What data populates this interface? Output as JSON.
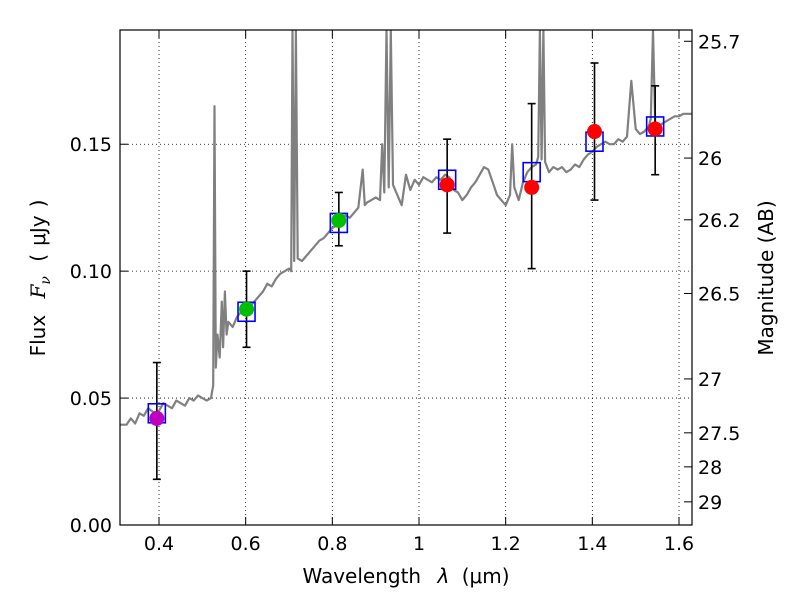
{
  "chart_data": {
    "type": "scatter",
    "xlabel": "Wavelength",
    "xlabel_symbol": "λ",
    "xlabel_unit": "μm",
    "ylabel": "Flux",
    "ylabel_symbol_main": "F",
    "ylabel_symbol_sub": "ν",
    "ylabel_unit": "μJy",
    "y2label": "Magnitude (AB)",
    "xlim": [
      0.31,
      1.63
    ],
    "ylim": [
      0.0,
      0.195
    ],
    "grid": true,
    "x_ticks": [
      {
        "value": 0.4,
        "label": "0.4"
      },
      {
        "value": 0.6,
        "label": "0.6"
      },
      {
        "value": 0.8,
        "label": "0.8"
      },
      {
        "value": 1.0,
        "label": "1"
      },
      {
        "value": 1.2,
        "label": "1.2"
      },
      {
        "value": 1.4,
        "label": "1.4"
      },
      {
        "value": 1.6,
        "label": "1.6"
      }
    ],
    "y_ticks": [
      {
        "value": 0.0,
        "label": "0.00"
      },
      {
        "value": 0.05,
        "label": "0.05"
      },
      {
        "value": 0.1,
        "label": "0.10"
      },
      {
        "value": 0.15,
        "label": "0.15"
      }
    ],
    "y2_ticks": [
      {
        "mag": 25.7,
        "label": "25.7"
      },
      {
        "mag": 26.0,
        "label": "26"
      },
      {
        "mag": 26.2,
        "label": "26.2"
      },
      {
        "mag": 26.5,
        "label": "26.5"
      },
      {
        "mag": 27.0,
        "label": "27"
      },
      {
        "mag": 27.5,
        "label": "27.5"
      },
      {
        "mag": 28.0,
        "label": "28"
      },
      {
        "mag": 29.0,
        "label": "29"
      }
    ],
    "observed": [
      {
        "x": 0.395,
        "y": 0.042,
        "err_lo": 0.018,
        "err_hi": 0.064,
        "color": "#bf00bf"
      },
      {
        "x": 0.602,
        "y": 0.085,
        "err_lo": 0.07,
        "err_hi": 0.1,
        "color": "#00bf00"
      },
      {
        "x": 0.815,
        "y": 0.12,
        "err_lo": 0.11,
        "err_hi": 0.131,
        "color": "#00bf00"
      },
      {
        "x": 1.065,
        "y": 0.134,
        "err_lo": 0.115,
        "err_hi": 0.152,
        "color": "#ff0000"
      },
      {
        "x": 1.26,
        "y": 0.133,
        "err_lo": 0.101,
        "err_hi": 0.166,
        "color": "#ff0000"
      },
      {
        "x": 1.405,
        "y": 0.155,
        "err_lo": 0.128,
        "err_hi": 0.182,
        "color": "#ff0000"
      },
      {
        "x": 1.545,
        "y": 0.156,
        "err_lo": 0.138,
        "err_hi": 0.173,
        "color": "#ff0000"
      }
    ],
    "model_photometry": [
      {
        "x": 0.395,
        "y": 0.044
      },
      {
        "x": 0.602,
        "y": 0.084
      },
      {
        "x": 0.815,
        "y": 0.119
      },
      {
        "x": 1.065,
        "y": 0.136
      },
      {
        "x": 1.26,
        "y": 0.139
      },
      {
        "x": 1.405,
        "y": 0.151
      },
      {
        "x": 1.545,
        "y": 0.157
      }
    ],
    "model_sed": {
      "color": "#808080",
      "points": [
        [
          0.31,
          0.0395
        ],
        [
          0.325,
          0.0395
        ],
        [
          0.335,
          0.042
        ],
        [
          0.345,
          0.04
        ],
        [
          0.355,
          0.044
        ],
        [
          0.365,
          0.043
        ],
        [
          0.375,
          0.046
        ],
        [
          0.39,
          0.044
        ],
        [
          0.4,
          0.045
        ],
        [
          0.41,
          0.048
        ],
        [
          0.42,
          0.047
        ],
        [
          0.43,
          0.046
        ],
        [
          0.44,
          0.049
        ],
        [
          0.45,
          0.048
        ],
        [
          0.46,
          0.047
        ],
        [
          0.47,
          0.05
        ],
        [
          0.48,
          0.049
        ],
        [
          0.49,
          0.051
        ],
        [
          0.5,
          0.05
        ],
        [
          0.51,
          0.049
        ],
        [
          0.52,
          0.05
        ],
        [
          0.525,
          0.055
        ],
        [
          0.528,
          0.165
        ],
        [
          0.531,
          0.062
        ],
        [
          0.535,
          0.075
        ],
        [
          0.54,
          0.066
        ],
        [
          0.545,
          0.088
        ],
        [
          0.548,
          0.07
        ],
        [
          0.552,
          0.092
        ],
        [
          0.556,
          0.075
        ],
        [
          0.56,
          0.08
        ],
        [
          0.57,
          0.078
        ],
        [
          0.58,
          0.082
        ],
        [
          0.59,
          0.084
        ],
        [
          0.6,
          0.083
        ],
        [
          0.61,
          0.086
        ],
        [
          0.62,
          0.088
        ],
        [
          0.63,
          0.09
        ],
        [
          0.64,
          0.092
        ],
        [
          0.65,
          0.095
        ],
        [
          0.66,
          0.094
        ],
        [
          0.67,
          0.097
        ],
        [
          0.68,
          0.099
        ],
        [
          0.69,
          0.1
        ],
        [
          0.7,
          0.101
        ],
        [
          0.705,
          0.1
        ],
        [
          0.708,
          0.195
        ],
        [
          0.712,
          0.104
        ],
        [
          0.716,
          0.195
        ],
        [
          0.72,
          0.105
        ],
        [
          0.73,
          0.104
        ],
        [
          0.74,
          0.106
        ],
        [
          0.75,
          0.108
        ],
        [
          0.76,
          0.11
        ],
        [
          0.77,
          0.112
        ],
        [
          0.78,
          0.113
        ],
        [
          0.79,
          0.115
        ],
        [
          0.8,
          0.117
        ],
        [
          0.81,
          0.118
        ],
        [
          0.82,
          0.12
        ],
        [
          0.83,
          0.122
        ],
        [
          0.84,
          0.121
        ],
        [
          0.85,
          0.123
        ],
        [
          0.86,
          0.125
        ],
        [
          0.87,
          0.14
        ],
        [
          0.875,
          0.126
        ],
        [
          0.88,
          0.127
        ],
        [
          0.89,
          0.128
        ],
        [
          0.9,
          0.129
        ],
        [
          0.91,
          0.128
        ],
        [
          0.915,
          0.15
        ],
        [
          0.92,
          0.131
        ],
        [
          0.925,
          0.195
        ],
        [
          0.93,
          0.133
        ],
        [
          0.935,
          0.195
        ],
        [
          0.94,
          0.134
        ],
        [
          0.95,
          0.13
        ],
        [
          0.96,
          0.126
        ],
        [
          0.97,
          0.138
        ],
        [
          0.98,
          0.132
        ],
        [
          0.99,
          0.136
        ],
        [
          1.0,
          0.134
        ],
        [
          1.01,
          0.137
        ],
        [
          1.02,
          0.136
        ],
        [
          1.03,
          0.135
        ],
        [
          1.04,
          0.137
        ],
        [
          1.05,
          0.136
        ],
        [
          1.06,
          0.138
        ],
        [
          1.07,
          0.137
        ],
        [
          1.08,
          0.132
        ],
        [
          1.09,
          0.131
        ],
        [
          1.1,
          0.128
        ],
        [
          1.11,
          0.13
        ],
        [
          1.12,
          0.133
        ],
        [
          1.13,
          0.135
        ],
        [
          1.14,
          0.138
        ],
        [
          1.15,
          0.141
        ],
        [
          1.16,
          0.14
        ],
        [
          1.17,
          0.135
        ],
        [
          1.18,
          0.13
        ],
        [
          1.19,
          0.128
        ],
        [
          1.2,
          0.126
        ],
        [
          1.21,
          0.13
        ],
        [
          1.215,
          0.15
        ],
        [
          1.22,
          0.133
        ],
        [
          1.23,
          0.128
        ],
        [
          1.24,
          0.135
        ],
        [
          1.25,
          0.139
        ],
        [
          1.26,
          0.141
        ],
        [
          1.27,
          0.142
        ],
        [
          1.275,
          0.145
        ],
        [
          1.279,
          0.195
        ],
        [
          1.283,
          0.144
        ],
        [
          1.287,
          0.195
        ],
        [
          1.291,
          0.143
        ],
        [
          1.3,
          0.139
        ],
        [
          1.31,
          0.141
        ],
        [
          1.32,
          0.14
        ],
        [
          1.33,
          0.141
        ],
        [
          1.34,
          0.139
        ],
        [
          1.35,
          0.14
        ],
        [
          1.36,
          0.142
        ],
        [
          1.37,
          0.141
        ],
        [
          1.38,
          0.144
        ],
        [
          1.39,
          0.146
        ],
        [
          1.4,
          0.147
        ],
        [
          1.41,
          0.149
        ],
        [
          1.42,
          0.15
        ],
        [
          1.43,
          0.151
        ],
        [
          1.44,
          0.15
        ],
        [
          1.45,
          0.15
        ],
        [
          1.46,
          0.152
        ],
        [
          1.47,
          0.151
        ],
        [
          1.48,
          0.153
        ],
        [
          1.49,
          0.175
        ],
        [
          1.5,
          0.156
        ],
        [
          1.51,
          0.154
        ],
        [
          1.52,
          0.155
        ],
        [
          1.53,
          0.157
        ],
        [
          1.535,
          0.16
        ],
        [
          1.54,
          0.195
        ],
        [
          1.545,
          0.158
        ],
        [
          1.55,
          0.157
        ],
        [
          1.56,
          0.158
        ],
        [
          1.57,
          0.159
        ],
        [
          1.58,
          0.16
        ],
        [
          1.59,
          0.161
        ],
        [
          1.6,
          0.161
        ],
        [
          1.61,
          0.162
        ],
        [
          1.62,
          0.162
        ],
        [
          1.63,
          0.162
        ]
      ]
    }
  }
}
